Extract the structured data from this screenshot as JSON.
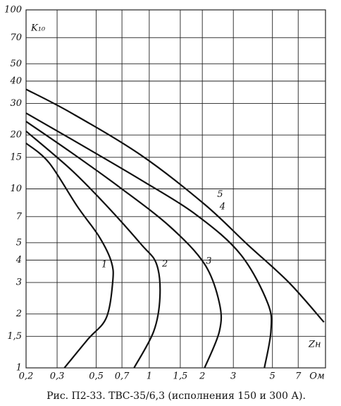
{
  "chart_data": {
    "type": "line",
    "caption": "Рис. П2-33. ТВС-35/6,3 (исполнения 150 и 300 А).",
    "y_label": "K₁₀",
    "x_label": "Zн",
    "x_unit": "Ом",
    "xscale": "log",
    "yscale": "log",
    "grid": true,
    "xlim": [
      0.2,
      10
    ],
    "ylim": [
      1,
      100
    ],
    "xticks": [
      {
        "value": 0.2,
        "label": "0,2"
      },
      {
        "value": 0.3,
        "label": "0,3"
      },
      {
        "value": 0.5,
        "label": "0,5"
      },
      {
        "value": 0.7,
        "label": "0,7"
      },
      1,
      {
        "value": 1.5,
        "label": "1,5"
      },
      2,
      3,
      5,
      7
    ],
    "yticks": [
      1,
      {
        "value": 1.5,
        "label": "1,5"
      },
      2,
      3,
      4,
      5,
      7,
      10,
      15,
      20,
      30,
      40,
      50,
      70,
      100
    ],
    "series": [
      {
        "name": "1",
        "color": "#111111",
        "x": [
          0.2,
          0.27,
          0.39,
          0.52,
          0.61,
          0.62,
          0.57,
          0.45,
          0.33
        ],
        "values": [
          18,
          14,
          8,
          5.4,
          3.9,
          3,
          1.9,
          1.45,
          1
        ]
      },
      {
        "name": "2",
        "color": "#111111",
        "x": [
          0.2,
          0.36,
          0.57,
          0.9,
          1.1,
          1.15,
          1.06,
          0.82
        ],
        "values": [
          21,
          12.8,
          8.1,
          4.9,
          3.8,
          2.5,
          1.6,
          1
        ]
      },
      {
        "name": "3",
        "color": "#111111",
        "x": [
          0.2,
          0.36,
          0.68,
          1.3,
          2.06,
          2.5,
          2.5,
          2.06
        ],
        "values": [
          23.8,
          16,
          10.2,
          6.2,
          3.8,
          2.3,
          1.6,
          1
        ]
      },
      {
        "name": "4",
        "color": "#111111",
        "x": [
          0.2,
          0.36,
          0.9,
          1.87,
          3.3,
          4.7,
          4.9,
          4.5
        ],
        "values": [
          26.5,
          19,
          11.2,
          7.1,
          4.3,
          2.3,
          1.6,
          1
        ]
      },
      {
        "name": "5",
        "color": "#111111",
        "x": [
          0.2,
          0.36,
          0.9,
          2.06,
          3.6,
          6.2,
          9.8
        ],
        "values": [
          36,
          26.6,
          15.4,
          8.2,
          4.9,
          3,
          1.8
        ]
      }
    ]
  }
}
